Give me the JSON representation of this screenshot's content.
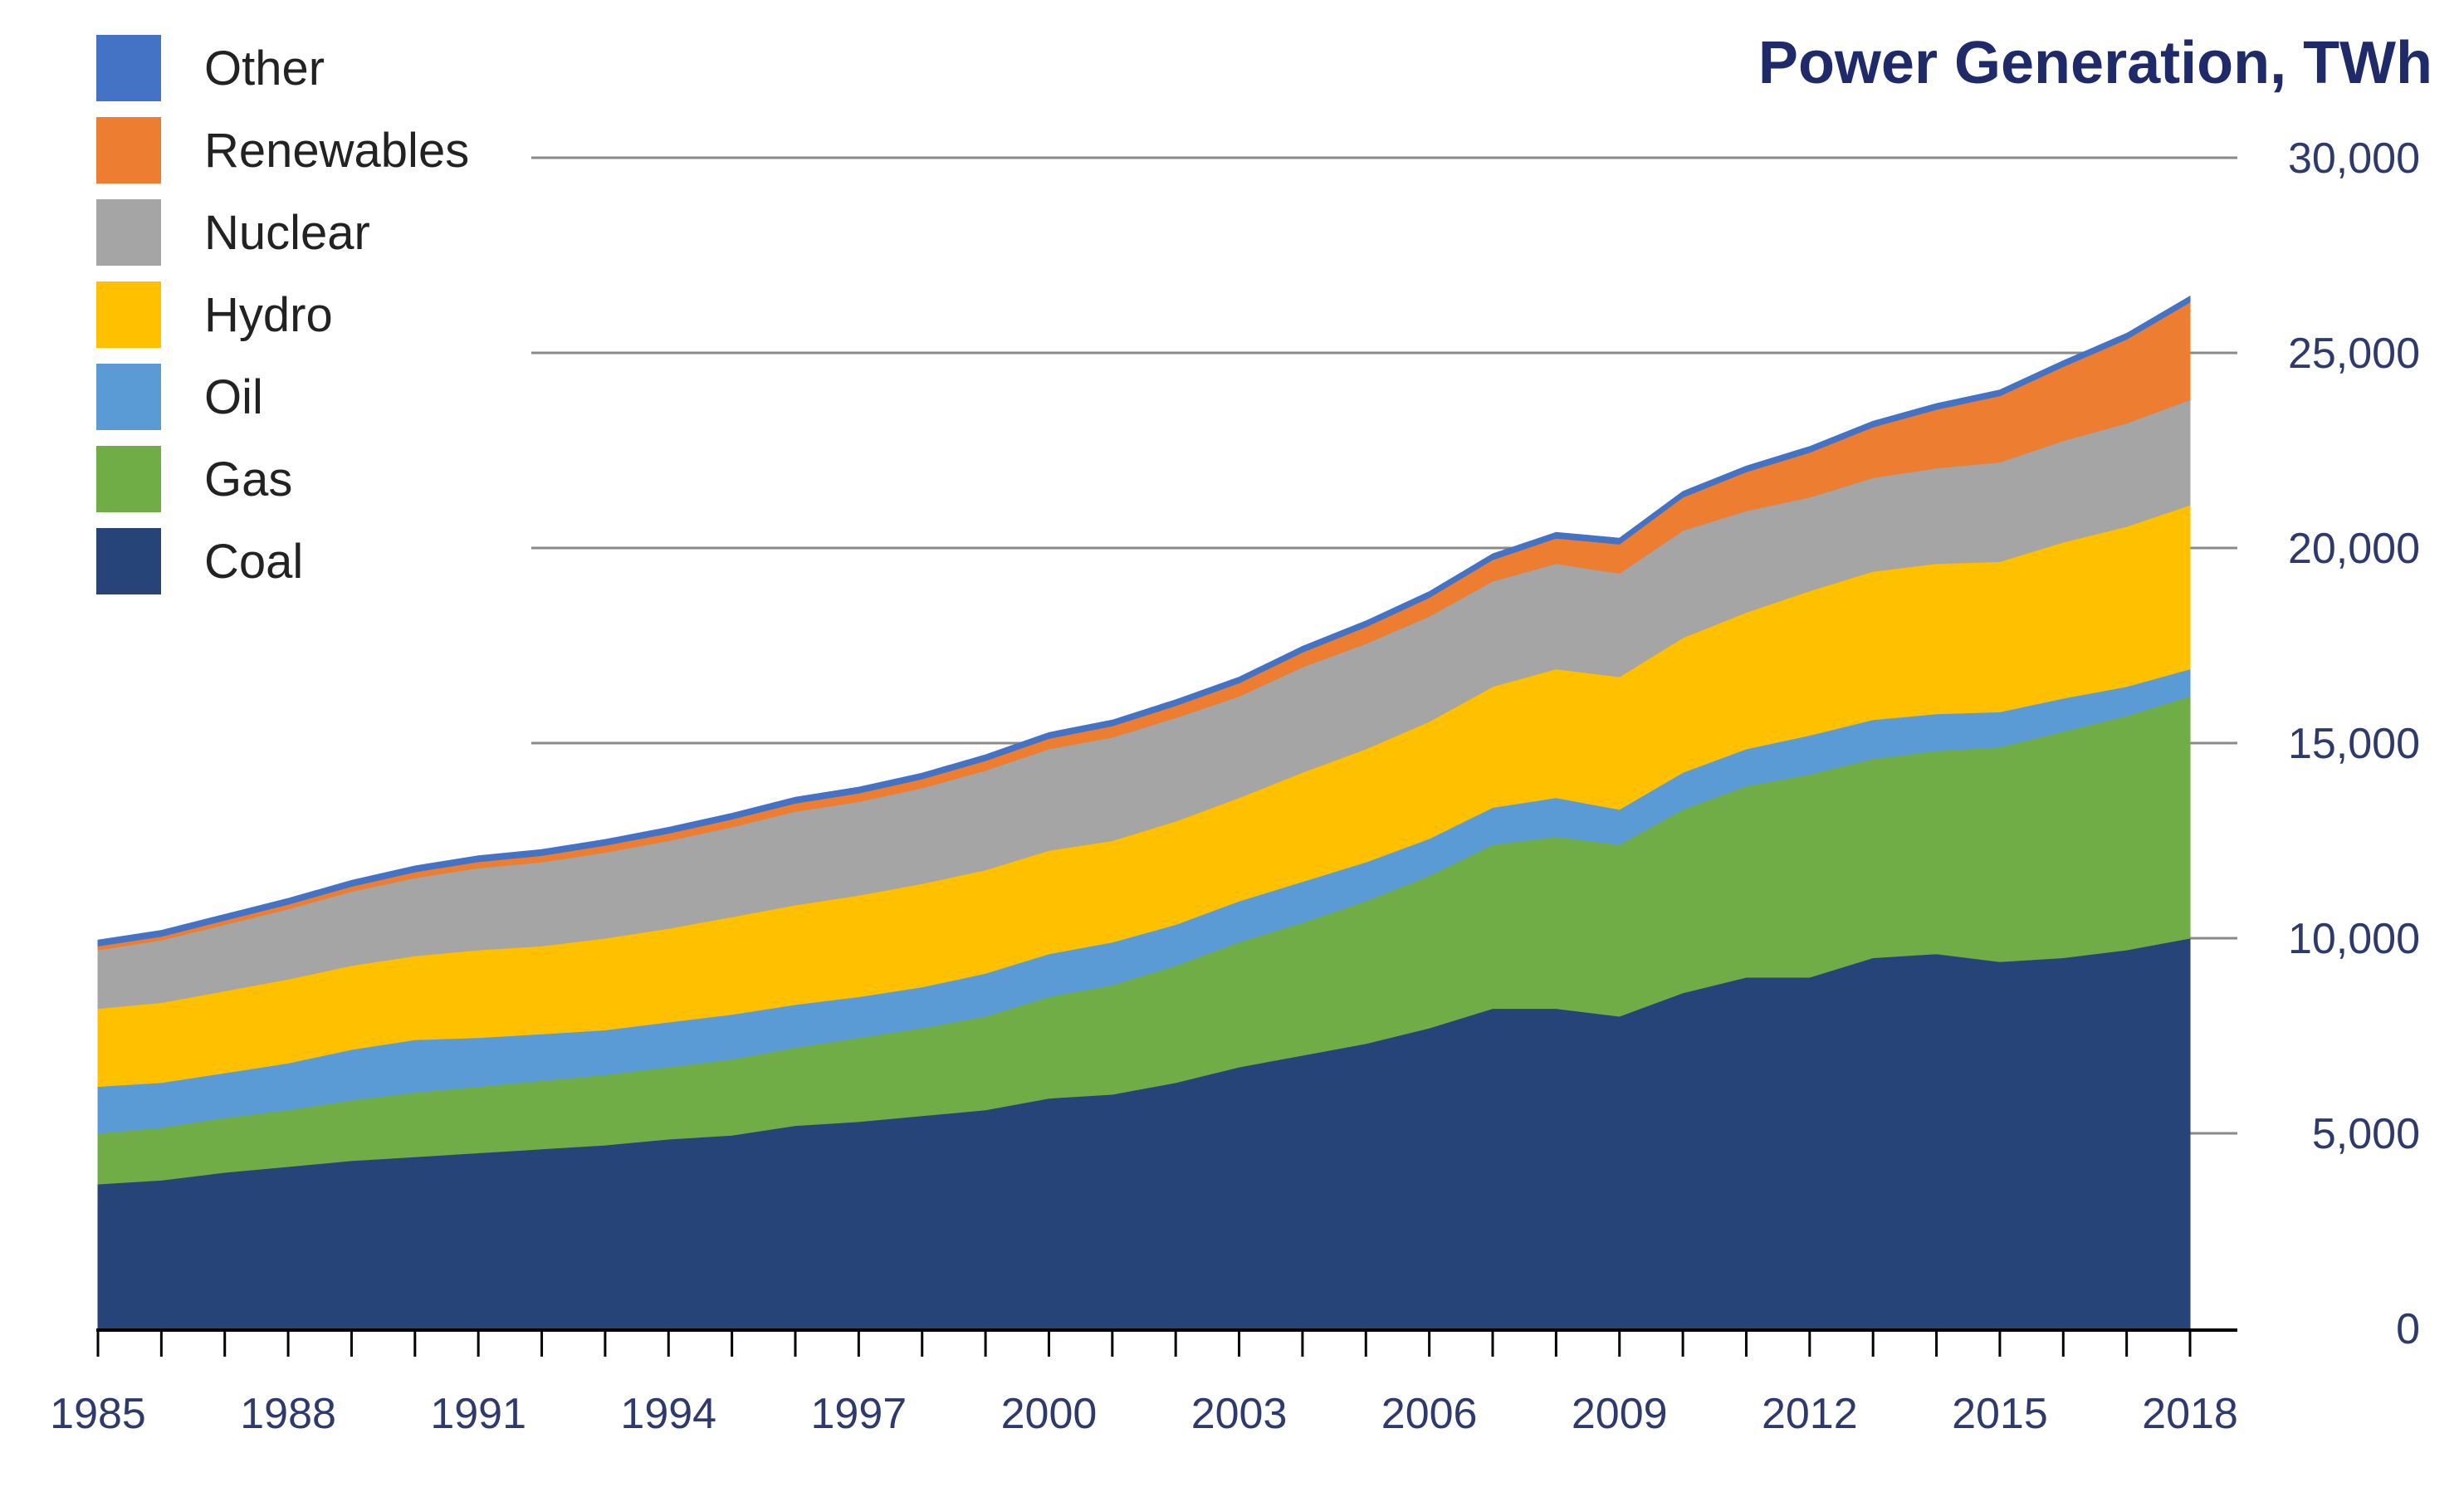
{
  "chart_data": {
    "type": "area",
    "stacked": true,
    "title": "Power Generation, TWh",
    "xlabel": "",
    "ylabel": "",
    "y_axis_side": "right",
    "ylim": [
      0,
      30000
    ],
    "grid": true,
    "legend_position": "top-left",
    "x": [
      1985,
      1986,
      1987,
      1988,
      1989,
      1990,
      1991,
      1992,
      1993,
      1994,
      1995,
      1996,
      1997,
      1998,
      1999,
      2000,
      2001,
      2002,
      2003,
      2004,
      2005,
      2006,
      2007,
      2008,
      2009,
      2010,
      2011,
      2012,
      2013,
      2014,
      2015,
      2016,
      2017,
      2018
    ],
    "x_tick_labels": [
      "1985",
      "1988",
      "1991",
      "1994",
      "1997",
      "2000",
      "2003",
      "2006",
      "2009",
      "2012",
      "2015",
      "2018"
    ],
    "y_tick_labels": [
      "0",
      "5,000",
      "10,000",
      "15,000",
      "20,000",
      "25,000",
      "30,000"
    ],
    "legend_order": [
      "Other",
      "Renewables",
      "Nuclear",
      "Hydro",
      "Oil",
      "Gas",
      "Coal"
    ],
    "series": [
      {
        "name": "Coal",
        "color": "#264478",
        "values": [
          3700,
          3800,
          4000,
          4150,
          4300,
          4400,
          4500,
          4600,
          4700,
          4850,
          4950,
          5200,
          5300,
          5450,
          5600,
          5900,
          6000,
          6300,
          6700,
          7000,
          7300,
          7700,
          8200,
          8200,
          8000,
          8600,
          9000,
          9000,
          9500,
          9600,
          9400,
          9500,
          9700,
          10000
        ]
      },
      {
        "name": "Gas",
        "color": "#70AD47",
        "values": [
          1300,
          1350,
          1400,
          1450,
          1550,
          1650,
          1700,
          1750,
          1800,
          1850,
          1950,
          2000,
          2150,
          2250,
          2400,
          2600,
          2800,
          3000,
          3200,
          3400,
          3650,
          3900,
          4200,
          4400,
          4400,
          4700,
          4900,
          5200,
          5100,
          5200,
          5500,
          5800,
          6000,
          6200
        ]
      },
      {
        "name": "Oil",
        "color": "#5B9BD5",
        "values": [
          1200,
          1150,
          1150,
          1200,
          1300,
          1350,
          1250,
          1200,
          1150,
          1150,
          1150,
          1100,
          1050,
          1050,
          1100,
          1100,
          1100,
          1050,
          1050,
          1050,
          1000,
          950,
          950,
          1000,
          900,
          950,
          950,
          1000,
          1000,
          950,
          900,
          850,
          750,
          700
        ]
      },
      {
        "name": "Hydro",
        "color": "#FFC000",
        "values": [
          2000,
          2050,
          2100,
          2150,
          2150,
          2150,
          2250,
          2250,
          2350,
          2400,
          2500,
          2550,
          2600,
          2650,
          2650,
          2650,
          2600,
          2650,
          2650,
          2800,
          2900,
          3000,
          3100,
          3300,
          3400,
          3450,
          3500,
          3700,
          3800,
          3850,
          3850,
          4000,
          4100,
          4200
        ]
      },
      {
        "name": "Nuclear",
        "color": "#A5A5A5",
        "values": [
          1500,
          1600,
          1700,
          1800,
          1900,
          2000,
          2100,
          2150,
          2200,
          2250,
          2300,
          2400,
          2400,
          2450,
          2550,
          2600,
          2650,
          2650,
          2600,
          2700,
          2700,
          2700,
          2700,
          2700,
          2650,
          2750,
          2600,
          2400,
          2400,
          2450,
          2550,
          2600,
          2650,
          2700
        ]
      },
      {
        "name": "Renewables",
        "color": "#ED7D31",
        "values": [
          100,
          100,
          110,
          120,
          130,
          150,
          160,
          170,
          180,
          190,
          200,
          210,
          220,
          230,
          250,
          270,
          290,
          310,
          340,
          380,
          430,
          480,
          550,
          650,
          750,
          850,
          1000,
          1150,
          1300,
          1500,
          1700,
          1900,
          2150,
          2500
        ]
      },
      {
        "name": "Other",
        "color": "#4472C4",
        "values": [
          150,
          150,
          150,
          150,
          150,
          150,
          150,
          150,
          150,
          150,
          150,
          150,
          150,
          150,
          150,
          150,
          150,
          150,
          150,
          150,
          150,
          150,
          150,
          150,
          150,
          150,
          150,
          150,
          150,
          150,
          150,
          150,
          150,
          150
        ]
      }
    ]
  },
  "colors": {
    "axis_text": "#2E3A6E",
    "title": "#1F2A6B",
    "gridline": "#8A8A8A",
    "axis_line": "#000000"
  }
}
